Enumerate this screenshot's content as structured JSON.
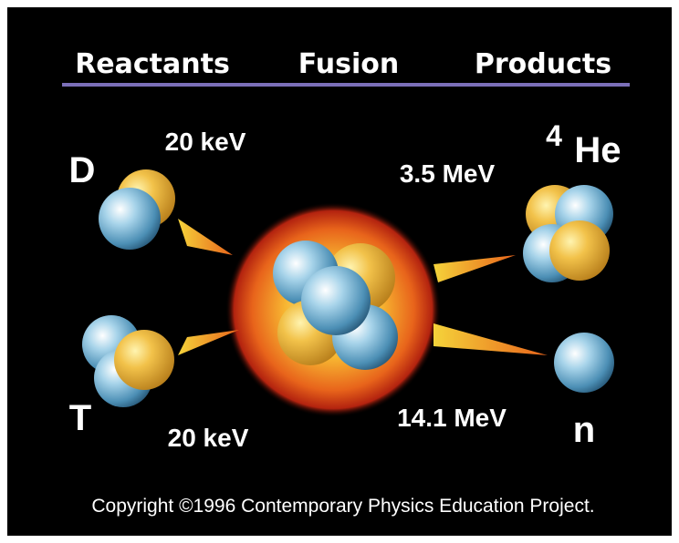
{
  "header": {
    "reactants": "Reactants",
    "fusion": "Fusion",
    "products": "Products"
  },
  "reactants": [
    {
      "label": "D",
      "energy": "20 keV"
    },
    {
      "label": "T",
      "energy": "20 keV"
    }
  ],
  "products": [
    {
      "mass_number": "4",
      "label": "He",
      "energy": "3.5 MeV"
    },
    {
      "label": "n",
      "energy": "14.1 MeV"
    }
  ],
  "copyright": "Copyright ©1996 Contemporary Physics Education Project."
}
